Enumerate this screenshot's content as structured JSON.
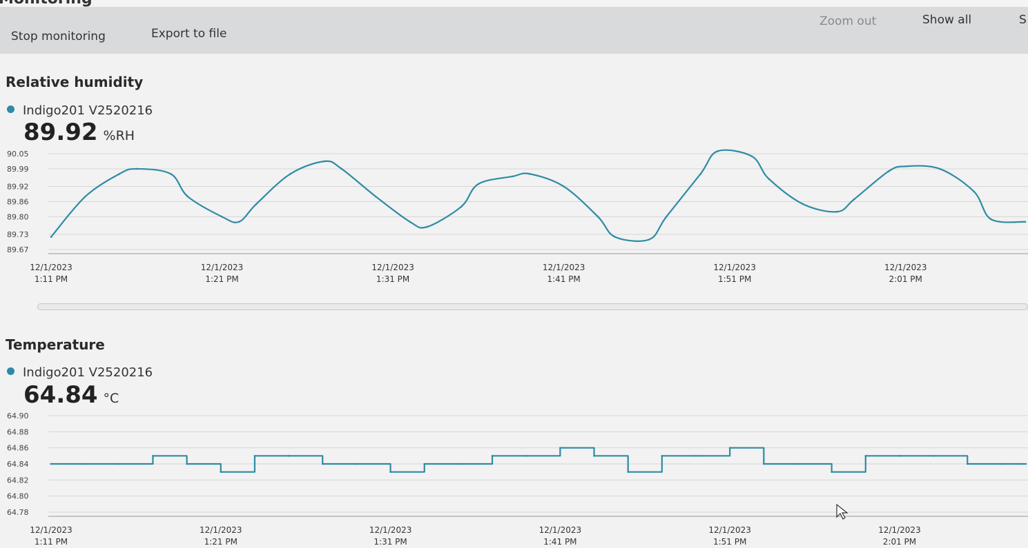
{
  "toolbar": {
    "stop_label": "Stop monitoring",
    "export_label": "Export to file",
    "zoom_out_label": "Zoom out",
    "show_all_label": "Show all",
    "cut_label": "S"
  },
  "header": {
    "title_fragment": "Monitoring"
  },
  "humidity": {
    "title": "Relative humidity",
    "series_name": "Indigo201 V2520216",
    "current_value": "89.92",
    "unit": "%RH"
  },
  "temperature": {
    "title": "Temperature",
    "series_name": "Indigo201 V2520216",
    "current_value": "64.84",
    "unit": "°C"
  },
  "colors": {
    "series": "#2e8aa5",
    "grid": "#d6d6d6",
    "toolbar": "#d9dadb"
  },
  "chart_data": [
    {
      "type": "line",
      "title": "Relative humidity",
      "ylabel": "%RH",
      "ylim": [
        89.67,
        90.05
      ],
      "yticks": [
        "90.05",
        "89.99",
        "89.92",
        "89.86",
        "89.80",
        "89.73",
        "89.67"
      ],
      "xlim": [
        "12/1/2023 1:11 PM",
        "12/1/2023 2:08 PM"
      ],
      "xticks": [
        {
          "date": "12/1/2023",
          "time": "1:11 PM"
        },
        {
          "date": "12/1/2023",
          "time": "1:21 PM"
        },
        {
          "date": "12/1/2023",
          "time": "1:31 PM"
        },
        {
          "date": "12/1/2023",
          "time": "1:41 PM"
        },
        {
          "date": "12/1/2023",
          "time": "1:51 PM"
        },
        {
          "date": "12/1/2023",
          "time": "2:01 PM"
        }
      ],
      "grid": true,
      "series": [
        {
          "name": "Indigo201 V2520216",
          "x": [
            "1:11 PM",
            "1:13 PM",
            "1:15 PM",
            "1:16 PM",
            "1:18 PM",
            "1:19 PM",
            "1:21 PM",
            "1:22 PM",
            "1:23 PM",
            "1:25 PM",
            "1:27 PM",
            "1:28 PM",
            "1:30 PM",
            "1:32 PM",
            "1:33 PM",
            "1:35 PM",
            "1:36 PM",
            "1:38 PM",
            "1:39 PM",
            "1:41 PM",
            "1:43 PM",
            "1:44 PM",
            "1:46 PM",
            "1:47 PM",
            "1:49 PM",
            "1:50 PM",
            "1:52 PM",
            "1:53 PM",
            "1:55 PM",
            "1:57 PM",
            "1:58 PM",
            "2:00 PM",
            "2:01 PM",
            "2:03 PM",
            "2:05 PM",
            "2:06 PM",
            "2:08 PM"
          ],
          "y": [
            89.72,
            89.88,
            89.97,
            89.99,
            89.97,
            89.88,
            89.8,
            89.78,
            89.85,
            89.97,
            90.02,
            89.99,
            89.88,
            89.78,
            89.76,
            89.84,
            89.93,
            89.96,
            89.97,
            89.92,
            89.8,
            89.72,
            89.71,
            89.8,
            89.97,
            90.06,
            90.04,
            89.95,
            89.85,
            89.82,
            89.87,
            89.98,
            90.0,
            89.99,
            89.9,
            89.79,
            89.78
          ]
        }
      ]
    },
    {
      "type": "line",
      "title": "Temperature",
      "ylabel": "°C",
      "ylim": [
        64.78,
        64.9
      ],
      "yticks": [
        "64.90",
        "64.88",
        "64.86",
        "64.84",
        "64.82",
        "64.80",
        "64.78"
      ],
      "xlim": [
        "12/1/2023 1:11 PM",
        "12/1/2023 2:08 PM"
      ],
      "xticks": [
        {
          "date": "12/1/2023",
          "time": "1:11 PM"
        },
        {
          "date": "12/1/2023",
          "time": "1:21 PM"
        },
        {
          "date": "12/1/2023",
          "time": "1:31 PM"
        },
        {
          "date": "12/1/2023",
          "time": "1:41 PM"
        },
        {
          "date": "12/1/2023",
          "time": "1:51 PM"
        },
        {
          "date": "12/1/2023",
          "time": "2:01 PM"
        }
      ],
      "grid": true,
      "series": [
        {
          "name": "Indigo201 V2520216",
          "x": [
            "1:11 PM",
            "1:13 PM",
            "1:15 PM",
            "1:17 PM",
            "1:19 PM",
            "1:21 PM",
            "1:23 PM",
            "1:25 PM",
            "1:27 PM",
            "1:29 PM",
            "1:31 PM",
            "1:33 PM",
            "1:35 PM",
            "1:37 PM",
            "1:39 PM",
            "1:41 PM",
            "1:43 PM",
            "1:45 PM",
            "1:47 PM",
            "1:49 PM",
            "1:51 PM",
            "1:53 PM",
            "1:55 PM",
            "1:57 PM",
            "1:59 PM",
            "2:01 PM",
            "2:03 PM",
            "2:05 PM",
            "2:07 PM",
            "2:08 PM"
          ],
          "y": [
            64.84,
            64.84,
            64.84,
            64.85,
            64.84,
            64.83,
            64.85,
            64.85,
            64.84,
            64.84,
            64.83,
            64.84,
            64.84,
            64.85,
            64.85,
            64.86,
            64.85,
            64.83,
            64.85,
            64.85,
            64.86,
            64.84,
            64.84,
            64.83,
            64.85,
            64.85,
            64.85,
            64.84,
            64.84,
            64.84
          ]
        }
      ]
    }
  ]
}
